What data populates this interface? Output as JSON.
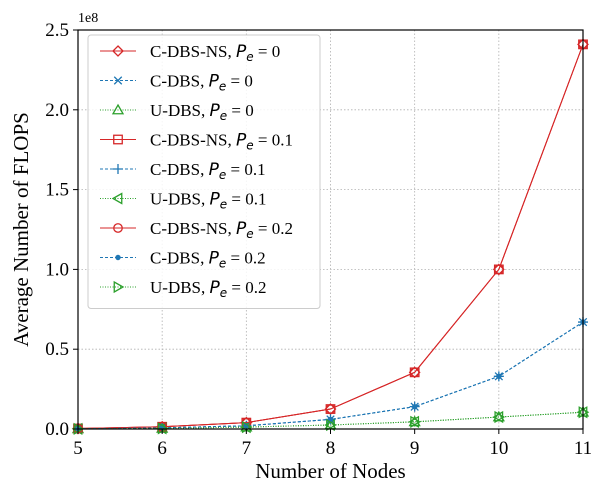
{
  "chart_data": {
    "type": "line",
    "xlabel": "Number of Nodes",
    "ylabel": "Average Number of FLOPS",
    "y_scale_label": "1e8",
    "y_scale": 100000000,
    "xlim": [
      5,
      11
    ],
    "ylim": [
      0,
      2.5
    ],
    "x": [
      5,
      6,
      7,
      8,
      9,
      10,
      11
    ],
    "x_ticks": [
      "5",
      "6",
      "7",
      "8",
      "9",
      "10",
      "11"
    ],
    "y_ticks": [
      "0.0",
      "0.5",
      "1.0",
      "1.5",
      "2.0",
      "2.5"
    ],
    "grid": true,
    "legend_position": "upper-left",
    "series": [
      {
        "name": "C-DBS-NS",
        "pe": "0",
        "color": "#d62728",
        "marker": "diamond",
        "line": "solid",
        "values": [
          0.003,
          0.014,
          0.04,
          0.125,
          0.355,
          1.0,
          2.41
        ]
      },
      {
        "name": "C-DBS",
        "pe": "0",
        "color": "#1f77b4",
        "marker": "x",
        "line": "dashed",
        "values": [
          0.002,
          0.007,
          0.02,
          0.06,
          0.14,
          0.33,
          0.67
        ]
      },
      {
        "name": "U-DBS",
        "pe": "0",
        "color": "#2ca02c",
        "marker": "triangle-up",
        "line": "dotted",
        "values": [
          0.001,
          0.004,
          0.012,
          0.025,
          0.045,
          0.075,
          0.105
        ]
      },
      {
        "name": "C-DBS-NS",
        "pe": "0.1",
        "color": "#d62728",
        "marker": "square",
        "line": "solid",
        "values": [
          0.003,
          0.014,
          0.04,
          0.125,
          0.355,
          1.0,
          2.41
        ]
      },
      {
        "name": "C-DBS",
        "pe": "0.1",
        "color": "#1f77b4",
        "marker": "plus",
        "line": "dashed",
        "values": [
          0.002,
          0.007,
          0.02,
          0.06,
          0.14,
          0.33,
          0.67
        ]
      },
      {
        "name": "U-DBS",
        "pe": "0.1",
        "color": "#2ca02c",
        "marker": "triangle-left",
        "line": "dotted",
        "values": [
          0.001,
          0.004,
          0.012,
          0.025,
          0.045,
          0.075,
          0.105
        ]
      },
      {
        "name": "C-DBS-NS",
        "pe": "0.2",
        "color": "#d62728",
        "marker": "circle",
        "line": "solid",
        "values": [
          0.003,
          0.014,
          0.04,
          0.125,
          0.355,
          1.0,
          2.41
        ]
      },
      {
        "name": "C-DBS",
        "pe": "0.2",
        "color": "#1f77b4",
        "marker": "dot",
        "line": "dashed",
        "values": [
          0.002,
          0.007,
          0.02,
          0.06,
          0.14,
          0.33,
          0.67
        ]
      },
      {
        "name": "U-DBS",
        "pe": "0.2",
        "color": "#2ca02c",
        "marker": "triangle-right",
        "line": "dotted",
        "values": [
          0.001,
          0.004,
          0.012,
          0.025,
          0.045,
          0.075,
          0.105
        ]
      }
    ]
  }
}
